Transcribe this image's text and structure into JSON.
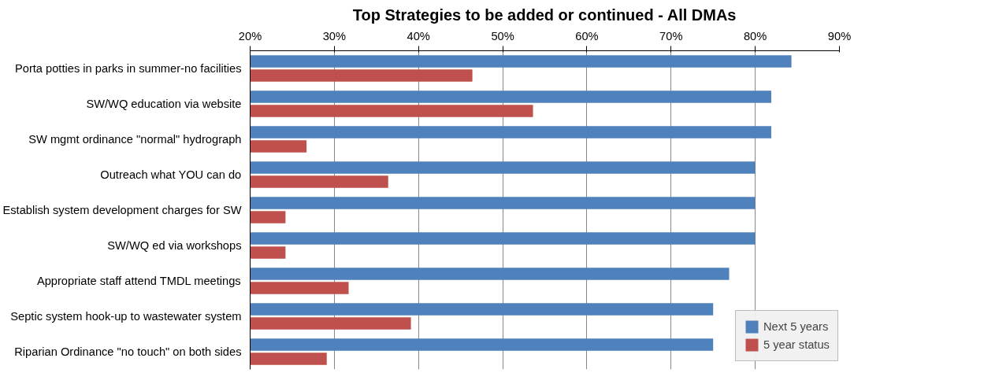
{
  "chart_data": {
    "type": "bar",
    "orientation": "horizontal",
    "title": "Top Strategies to be added or continued - All DMAs",
    "categories": [
      "Porta potties in parks in summer-no facilities",
      "SW/WQ education via website",
      "SW mgmt ordinance \"normal\" hydrograph",
      "Outreach what YOU can do",
      "Establish system development charges for SW",
      "SW/WQ ed via workshops",
      "Appropriate staff attend TMDL meetings",
      "Septic system hook-up to wastewater system",
      "Riparian Ordinance \"no touch\" on both sides"
    ],
    "series": [
      {
        "name": "Next 5 years",
        "color": "#4f81bd",
        "values": [
          84.3,
          81.9,
          81.9,
          80,
          80,
          80,
          76.9,
          75,
          75
        ]
      },
      {
        "name": "5 year status",
        "color": "#c0504d",
        "values": [
          46.4,
          53.6,
          26.7,
          36.4,
          24.2,
          24.2,
          31.7,
          39.1,
          29.1
        ]
      }
    ],
    "xlim": [
      20,
      90
    ],
    "xticks": [
      {
        "value": 20,
        "label": "20%"
      },
      {
        "value": 30,
        "label": "30%"
      },
      {
        "value": 40,
        "label": "40%"
      },
      {
        "value": 50,
        "label": "50%"
      },
      {
        "value": 60,
        "label": "60%"
      },
      {
        "value": 70,
        "label": "70%"
      },
      {
        "value": 80,
        "label": "80%"
      },
      {
        "value": 90,
        "label": "90%"
      }
    ],
    "grid": "x",
    "legend": "bottom right"
  }
}
